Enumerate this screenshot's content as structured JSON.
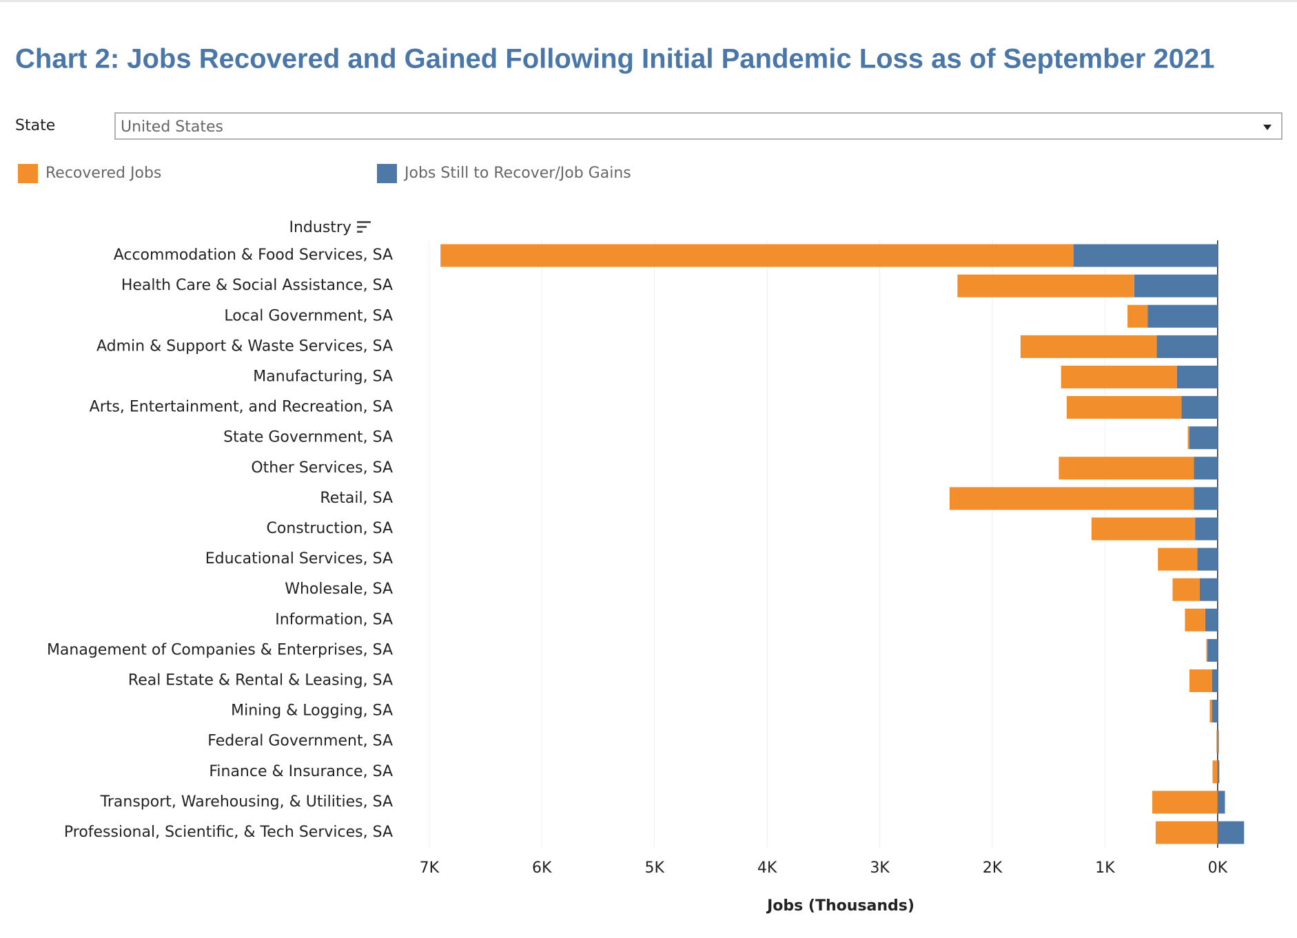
{
  "filter": {
    "label": "State",
    "value": "United States"
  },
  "chart_data": {
    "type": "bar",
    "orientation": "horizontal",
    "stacked": true,
    "title": "Chart 2: Jobs Recovered and Gained Following Initial Pandemic Loss as of September 2021",
    "y_label": "Industry",
    "x_label": "Jobs (Thousands)",
    "categories": [
      "Accommodation & Food Services, SA",
      "Health Care & Social Assistance, SA",
      "Local Government, SA",
      "Admin & Support & Waste Services, SA",
      "Manufacturing, SA",
      "Arts, Entertainment, and Recreation, SA",
      "State Government, SA",
      "Other Services, SA",
      "Retail, SA",
      "Construction, SA",
      "Educational Services, SA",
      "Wholesale, SA",
      "Information, SA",
      "Management of Companies & Enterprises, SA",
      "Real Estate & Rental & Leasing, SA",
      "Mining & Logging, SA",
      "Federal Government, SA",
      "Finance & Insurance, SA",
      "Transport, Warehousing, & Utilities, SA",
      "Professional, Scientific, & Tech Services, SA"
    ],
    "series": [
      {
        "name": "Recovered Jobs",
        "color": "#f28e2b",
        "values": [
          5620,
          1570,
          180,
          1210,
          1030,
          1020,
          15,
          1200,
          2170,
          920,
          350,
          240,
          180,
          10,
          200,
          20,
          10,
          45,
          580,
          550
        ]
      },
      {
        "name": "Jobs Still to Recover/Job Gains",
        "color": "#4e79a7",
        "values": [
          1280,
          740,
          620,
          540,
          360,
          320,
          250,
          210,
          210,
          200,
          180,
          160,
          110,
          90,
          50,
          50,
          -10,
          -15,
          -65,
          -235
        ]
      }
    ],
    "xlim": [
      7250,
      -350
    ],
    "xticks": [
      {
        "value": 7000,
        "label": "7K"
      },
      {
        "value": 6000,
        "label": "6K"
      },
      {
        "value": 5000,
        "label": "5K"
      },
      {
        "value": 4000,
        "label": "4K"
      },
      {
        "value": 3000,
        "label": "3K"
      },
      {
        "value": 2000,
        "label": "2K"
      },
      {
        "value": 1000,
        "label": "1K"
      },
      {
        "value": 0,
        "label": "0K"
      }
    ],
    "grid": true
  }
}
